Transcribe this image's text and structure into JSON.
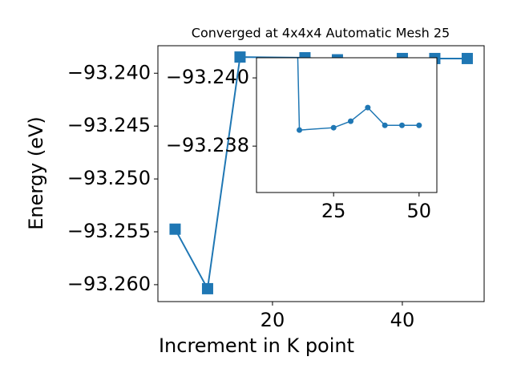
{
  "chart_data": {
    "type": "line",
    "title": "Converged at 4x4x4 Automatic Mesh 25",
    "xlabel": "Increment in K point",
    "ylabel": "Energy (eV)",
    "x": [
      5,
      10,
      15,
      25,
      30,
      35,
      40,
      45,
      50
    ],
    "series": [
      {
        "color": "#1f77b4",
        "values": [
          -93.25475,
          -93.26038,
          -93.23847,
          -93.23854,
          -93.23873,
          -93.23913,
          -93.23861,
          -93.23861,
          -93.23861
        ]
      }
    ],
    "xlim": [
      2.35,
      52.6
    ],
    "ylim": [
      -93.2616,
      -93.2374
    ],
    "xticks": [
      20,
      40
    ],
    "yticks": [
      {
        "value": -93.26,
        "label": "−93.260"
      },
      {
        "value": -93.255,
        "label": "−93.255"
      },
      {
        "value": -93.25,
        "label": "−93.250"
      },
      {
        "value": -93.245,
        "label": "−93.245"
      },
      {
        "value": -93.24,
        "label": "−93.240"
      }
    ],
    "inset": {
      "xlim": [
        2.45,
        55.2
      ],
      "ylim": [
        -93.23664,
        -93.24059
      ],
      "xticks": [
        25,
        50
      ],
      "yticks": [
        {
          "value": -93.24,
          "label": "−93.240"
        },
        {
          "value": -93.238,
          "label": "−93.238"
        }
      ]
    }
  }
}
